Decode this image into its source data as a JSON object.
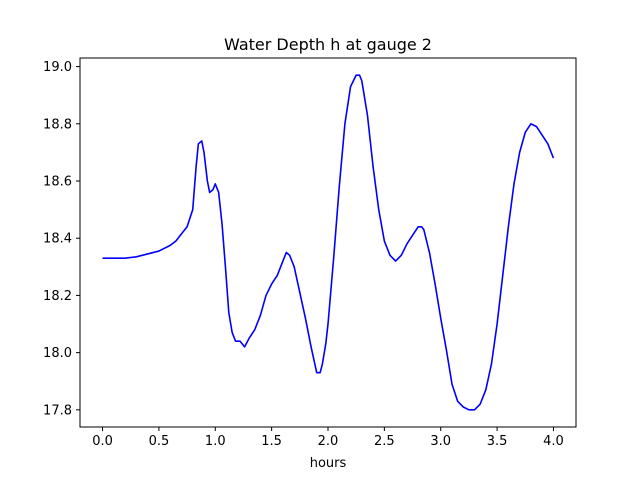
{
  "chart_data": {
    "type": "line",
    "title": "Water Depth h at gauge 2",
    "xlabel": "hours",
    "ylabel": "",
    "xlim": [
      -0.2,
      4.2
    ],
    "ylim": [
      17.74,
      19.03
    ],
    "xticks": [
      0.0,
      0.5,
      1.0,
      1.5,
      2.0,
      2.5,
      3.0,
      3.5,
      4.0
    ],
    "xtick_labels": [
      "0.0",
      "0.5",
      "1.0",
      "1.5",
      "2.0",
      "2.5",
      "3.0",
      "3.5",
      "4.0"
    ],
    "yticks": [
      17.8,
      18.0,
      18.2,
      18.4,
      18.6,
      18.8,
      19.0
    ],
    "ytick_labels": [
      "17.8",
      "18.0",
      "18.2",
      "18.4",
      "18.6",
      "18.8",
      "19.0"
    ],
    "grid": false,
    "legend": "none",
    "series": [
      {
        "color": "#0000ff",
        "x": [
          0.0,
          0.1,
          0.2,
          0.3,
          0.4,
          0.5,
          0.6,
          0.65,
          0.7,
          0.75,
          0.8,
          0.83,
          0.85,
          0.88,
          0.9,
          0.93,
          0.95,
          0.98,
          1.0,
          1.03,
          1.06,
          1.09,
          1.12,
          1.15,
          1.18,
          1.22,
          1.26,
          1.3,
          1.35,
          1.4,
          1.45,
          1.5,
          1.55,
          1.6,
          1.63,
          1.66,
          1.7,
          1.75,
          1.8,
          1.85,
          1.9,
          1.93,
          1.95,
          1.98,
          2.0,
          2.05,
          2.1,
          2.15,
          2.2,
          2.25,
          2.28,
          2.3,
          2.35,
          2.4,
          2.45,
          2.5,
          2.55,
          2.6,
          2.65,
          2.7,
          2.75,
          2.8,
          2.83,
          2.85,
          2.9,
          2.95,
          3.0,
          3.05,
          3.1,
          3.15,
          3.2,
          3.25,
          3.3,
          3.35,
          3.4,
          3.45,
          3.5,
          3.55,
          3.6,
          3.65,
          3.7,
          3.75,
          3.8,
          3.85,
          3.9,
          3.95,
          4.0
        ],
        "y": [
          18.33,
          18.33,
          18.33,
          18.335,
          18.345,
          18.355,
          18.375,
          18.39,
          18.415,
          18.44,
          18.5,
          18.65,
          18.73,
          18.74,
          18.7,
          18.6,
          18.56,
          18.57,
          18.59,
          18.56,
          18.45,
          18.3,
          18.14,
          18.07,
          18.04,
          18.04,
          18.02,
          18.05,
          18.08,
          18.13,
          18.2,
          18.24,
          18.27,
          18.32,
          18.35,
          18.34,
          18.3,
          18.21,
          18.12,
          18.02,
          17.93,
          17.93,
          17.96,
          18.03,
          18.1,
          18.33,
          18.58,
          18.8,
          18.93,
          18.97,
          18.97,
          18.95,
          18.83,
          18.65,
          18.5,
          18.39,
          18.34,
          18.32,
          18.34,
          18.38,
          18.41,
          18.44,
          18.44,
          18.43,
          18.35,
          18.24,
          18.12,
          18.01,
          17.89,
          17.83,
          17.81,
          17.8,
          17.8,
          17.82,
          17.87,
          17.96,
          18.1,
          18.27,
          18.44,
          18.59,
          18.7,
          18.77,
          18.8,
          18.79,
          18.76,
          18.73,
          18.68
        ]
      }
    ]
  }
}
